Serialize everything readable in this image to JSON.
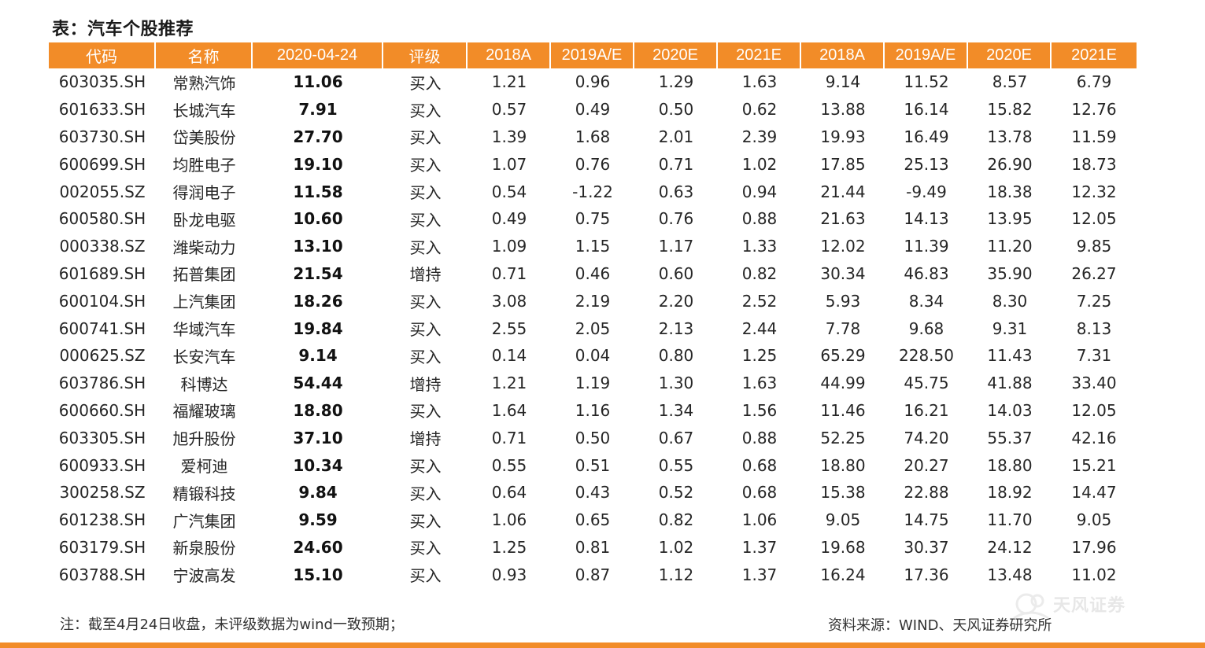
{
  "title": "表：汽车个股推荐",
  "columns": [
    "代码",
    "名称",
    "2020-04-24",
    "评级",
    "2018A",
    "2019A/E",
    "2020E",
    "2021E",
    "2018A",
    "2019A/E",
    "2020E",
    "2021E"
  ],
  "rows": [
    [
      "603035.SH",
      "常熟汽饰",
      "11.06",
      "买入",
      "1.21",
      "0.96",
      "1.29",
      "1.63",
      "9.14",
      "11.52",
      "8.57",
      "6.79"
    ],
    [
      "601633.SH",
      "长城汽车",
      "7.91",
      "买入",
      "0.57",
      "0.49",
      "0.50",
      "0.62",
      "13.88",
      "16.14",
      "15.82",
      "12.76"
    ],
    [
      "603730.SH",
      "岱美股份",
      "27.70",
      "买入",
      "1.39",
      "1.68",
      "2.01",
      "2.39",
      "19.93",
      "16.49",
      "13.78",
      "11.59"
    ],
    [
      "600699.SH",
      "均胜电子",
      "19.10",
      "买入",
      "1.07",
      "0.76",
      "0.71",
      "1.02",
      "17.85",
      "25.13",
      "26.90",
      "18.73"
    ],
    [
      "002055.SZ",
      "得润电子",
      "11.58",
      "买入",
      "0.54",
      "-1.22",
      "0.63",
      "0.94",
      "21.44",
      "-9.49",
      "18.38",
      "12.32"
    ],
    [
      "600580.SH",
      "卧龙电驱",
      "10.60",
      "买入",
      "0.49",
      "0.75",
      "0.76",
      "0.88",
      "21.63",
      "14.13",
      "13.95",
      "12.05"
    ],
    [
      "000338.SZ",
      "潍柴动力",
      "13.10",
      "买入",
      "1.09",
      "1.15",
      "1.17",
      "1.33",
      "12.02",
      "11.39",
      "11.20",
      "9.85"
    ],
    [
      "601689.SH",
      "拓普集团",
      "21.54",
      "增持",
      "0.71",
      "0.46",
      "0.60",
      "0.82",
      "30.34",
      "46.83",
      "35.90",
      "26.27"
    ],
    [
      "600104.SH",
      "上汽集团",
      "18.26",
      "买入",
      "3.08",
      "2.19",
      "2.20",
      "2.52",
      "5.93",
      "8.34",
      "8.30",
      "7.25"
    ],
    [
      "600741.SH",
      "华域汽车",
      "19.84",
      "买入",
      "2.55",
      "2.05",
      "2.13",
      "2.44",
      "7.78",
      "9.68",
      "9.31",
      "8.13"
    ],
    [
      "000625.SZ",
      "长安汽车",
      "9.14",
      "买入",
      "0.14",
      "0.04",
      "0.80",
      "1.25",
      "65.29",
      "228.50",
      "11.43",
      "7.31"
    ],
    [
      "603786.SH",
      "科博达",
      "54.44",
      "增持",
      "1.21",
      "1.19",
      "1.30",
      "1.63",
      "44.99",
      "45.75",
      "41.88",
      "33.40"
    ],
    [
      "600660.SH",
      "福耀玻璃",
      "18.80",
      "买入",
      "1.64",
      "1.16",
      "1.34",
      "1.56",
      "11.46",
      "16.21",
      "14.03",
      "12.05"
    ],
    [
      "603305.SH",
      "旭升股份",
      "37.10",
      "增持",
      "0.71",
      "0.50",
      "0.67",
      "0.88",
      "52.25",
      "74.20",
      "55.37",
      "42.16"
    ],
    [
      "600933.SH",
      "爱柯迪",
      "10.34",
      "买入",
      "0.55",
      "0.51",
      "0.55",
      "0.68",
      "18.80",
      "20.27",
      "18.80",
      "15.21"
    ],
    [
      "300258.SZ",
      "精锻科技",
      "9.84",
      "买入",
      "0.64",
      "0.43",
      "0.52",
      "0.68",
      "15.38",
      "22.88",
      "18.92",
      "14.47"
    ],
    [
      "601238.SH",
      "广汽集团",
      "9.59",
      "买入",
      "1.06",
      "0.65",
      "0.82",
      "1.06",
      "9.05",
      "14.75",
      "11.70",
      "9.05"
    ],
    [
      "603179.SH",
      "新泉股份",
      "24.60",
      "买入",
      "1.25",
      "0.81",
      "1.02",
      "1.37",
      "19.68",
      "30.37",
      "24.12",
      "17.96"
    ],
    [
      "603788.SH",
      "宁波高发",
      "15.10",
      "买入",
      "0.93",
      "0.87",
      "1.12",
      "1.37",
      "16.24",
      "17.36",
      "13.48",
      "11.02"
    ]
  ],
  "note": "注：截至4月24日收盘，未评级数据为wind一致预期；",
  "source": "资料来源：WIND、天风证券研究所",
  "watermark": "天风证券",
  "colors": {
    "header_bg": "#f28c28",
    "header_text": "#ffffff",
    "bottom_bar": "#f28c28"
  }
}
